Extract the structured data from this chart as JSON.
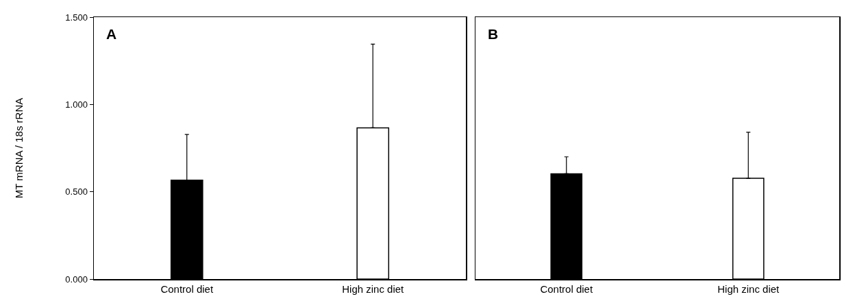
{
  "chart_data": [
    {
      "type": "bar",
      "title": "A",
      "ylabel": "MT mRNA / 18s rRNA",
      "categories": [
        "Control diet",
        "High zinc diet"
      ],
      "values": [
        0.566,
        0.866
      ],
      "colors": [
        "#000000",
        "#ffffff"
      ],
      "errors": [
        [
          0.566,
          0.828
        ],
        [
          0.866,
          1.345
        ]
      ],
      "ylim": [
        0,
        1.5
      ],
      "yticks": [
        {
          "value": 0,
          "label": "0.000"
        },
        {
          "value": 0.5,
          "label": "0.500"
        },
        {
          "value": 1,
          "label": "1.000"
        },
        {
          "value": 1.5,
          "label": "1.500"
        }
      ],
      "grid": false
    },
    {
      "type": "bar",
      "title": "B",
      "categories": [
        "Control diet",
        "High zinc diet"
      ],
      "values": [
        0.603,
        0.577
      ],
      "colors": [
        "#000000",
        "#ffffff"
      ],
      "errors": [
        [
          0.603,
          0.7
        ],
        [
          0.577,
          0.841
        ]
      ],
      "ylim": [
        0,
        1.5
      ],
      "tick_labels": "x",
      "grid": false
    }
  ]
}
